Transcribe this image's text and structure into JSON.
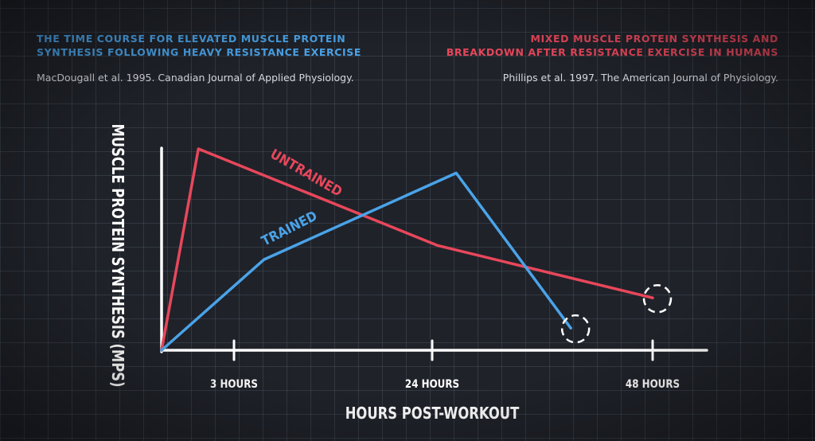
{
  "sources": {
    "left": {
      "title_line1": "THE TIME COURSE FOR ELEVATED MUSCLE PROTEIN",
      "title_line2": "SYNTHESIS FOLLOWING HEAVY RESISTANCE EXERCISE",
      "citation": "MacDougall et al. 1995. Canadian Journal of Applied Physiology.",
      "color": "#4aa3e8"
    },
    "right": {
      "title_line1": "MIXED MUSCLE PROTEIN SYNTHESIS AND",
      "title_line2": "BREAKDOWN AFTER RESISTANCE EXERCISE IN HUMANS",
      "citation": "Phillips et al. 1997. The American Journal of Physiology.",
      "color": "#e8475b"
    }
  },
  "chart_data": {
    "type": "line",
    "xlabel": "HOURS POST-WORKOUT",
    "ylabel": "MUSCLE PROTEIN SYNTHESIS (MPS)",
    "x_ticks": [
      {
        "x": 3,
        "label": "3 HOURS"
      },
      {
        "x": 24,
        "label": "24 HOURS"
      },
      {
        "x": 48,
        "label": "48 HOURS"
      }
    ],
    "grid": true,
    "series": [
      {
        "name": "UNTRAINED",
        "color": "#e8475b",
        "points": [
          [
            0,
            0
          ],
          [
            3.6,
            1.0
          ],
          [
            27,
            0.52
          ],
          [
            48,
            0.26
          ]
        ],
        "end_marker": "dashed-circle"
      },
      {
        "name": "TRAINED",
        "color": "#4aa3e8",
        "points": [
          [
            0,
            0
          ],
          [
            10,
            0.45
          ],
          [
            28.8,
            0.88
          ],
          [
            40,
            0.11
          ]
        ],
        "end_marker": "dashed-circle"
      }
    ]
  }
}
